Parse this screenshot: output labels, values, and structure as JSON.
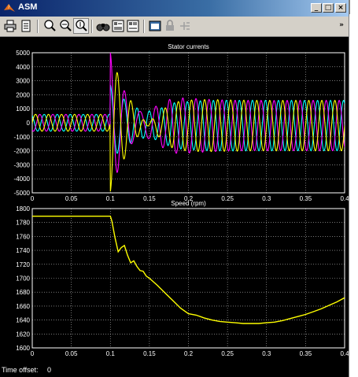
{
  "window": {
    "title": "ASM",
    "controls": [
      "minimize",
      "maximize",
      "close"
    ]
  },
  "toolbar": {
    "buttons": [
      {
        "name": "print-icon"
      },
      {
        "name": "parameters-icon"
      },
      {
        "name": "zoom-icon"
      },
      {
        "name": "zoom-x-icon"
      },
      {
        "name": "zoom-y-icon"
      },
      {
        "name": "autoscale-icon"
      },
      {
        "name": "save-axes-icon"
      },
      {
        "name": "restore-axes-icon"
      },
      {
        "name": "floating-scope-icon"
      },
      {
        "name": "lock-icon"
      },
      {
        "name": "signal-selection-icon"
      }
    ]
  },
  "status": {
    "label": "Time offset:",
    "value": "0"
  },
  "colors": {
    "plot_bg": "#000000",
    "axes": "#ffffff",
    "grid": "#ffffff",
    "series_yellow": "#ffff00",
    "series_magenta": "#ff00ff",
    "series_cyan": "#00ffff"
  },
  "chart_data": [
    {
      "type": "line",
      "title": "Stator currents",
      "xlim": [
        0,
        0.4
      ],
      "ylim": [
        -5000,
        5000
      ],
      "x_ticks": [
        "0",
        "0.05",
        "0.1",
        "0.15",
        "0.2",
        "0.25",
        "0.3",
        "0.35",
        "0.4"
      ],
      "y_ticks": [
        "5000",
        "4000",
        "3000",
        "2000",
        "1000",
        "0",
        "-1000",
        "-2000",
        "-3000",
        "-4000",
        "-5000"
      ],
      "grid": true,
      "series_colors": [
        "#ffff00",
        "#ff00ff",
        "#00ffff"
      ],
      "pre_event_amplitude": 600,
      "event_time": 0.1,
      "peak_values": [
        -4900,
        5000,
        2700
      ],
      "post_event_amplitude": 1800,
      "post_event_offset": -200,
      "frequency_hz": 60
    },
    {
      "type": "line",
      "title": "Speed (rpm)",
      "xlim": [
        0,
        0.4
      ],
      "ylim": [
        1600,
        1800
      ],
      "x_ticks": [
        "0",
        "0.05",
        "0.1",
        "0.15",
        "0.2",
        "0.25",
        "0.3",
        "0.35",
        "0.4"
      ],
      "y_ticks": [
        "1800",
        "1780",
        "1760",
        "1740",
        "1720",
        "1700",
        "1680",
        "1660",
        "1640",
        "1620",
        "1600"
      ],
      "grid": true,
      "series_colors": [
        "#ffff00"
      ],
      "x": [
        0,
        0.1,
        0.102,
        0.106,
        0.11,
        0.114,
        0.118,
        0.122,
        0.126,
        0.13,
        0.134,
        0.138,
        0.142,
        0.146,
        0.15,
        0.16,
        0.17,
        0.18,
        0.19,
        0.2,
        0.21,
        0.22,
        0.23,
        0.24,
        0.25,
        0.26,
        0.27,
        0.28,
        0.29,
        0.3,
        0.31,
        0.32,
        0.33,
        0.34,
        0.35,
        0.36,
        0.37,
        0.38,
        0.39,
        0.4
      ],
      "values": [
        1789,
        1789,
        1782,
        1758,
        1738,
        1744,
        1747,
        1733,
        1722,
        1725,
        1717,
        1711,
        1710,
        1703,
        1700,
        1690,
        1679,
        1668,
        1657,
        1649,
        1647,
        1643,
        1640,
        1638,
        1637,
        1636,
        1635,
        1635,
        1635,
        1636,
        1637,
        1639,
        1642,
        1645,
        1648,
        1652,
        1656,
        1661,
        1666,
        1672
      ]
    }
  ]
}
